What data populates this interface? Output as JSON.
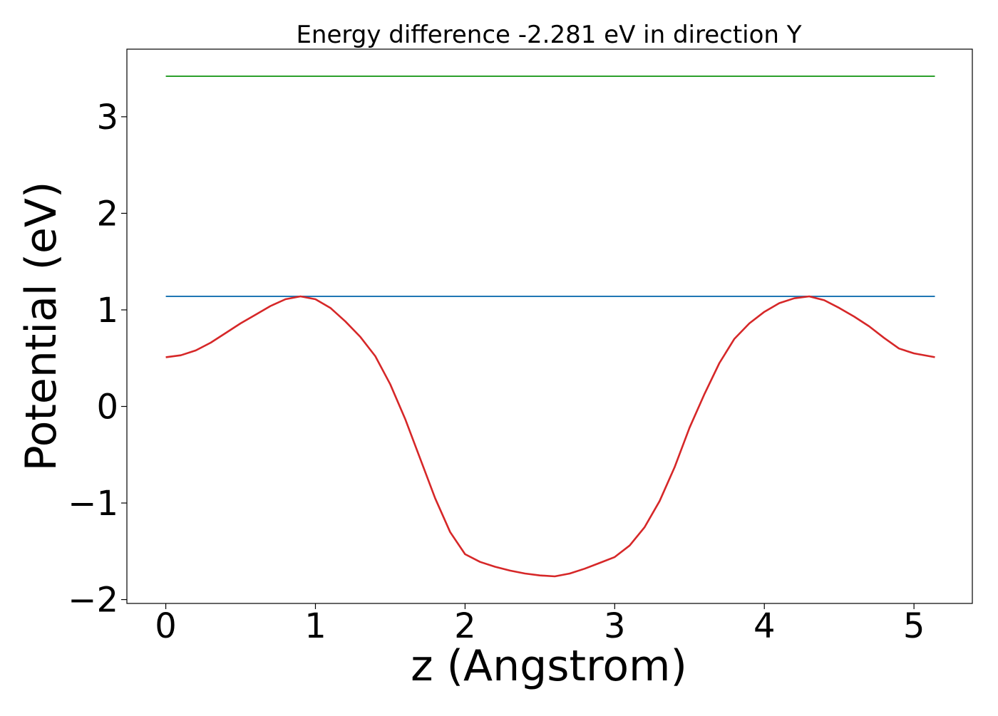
{
  "chart_data": {
    "type": "line",
    "title": "Energy difference -2.281 eV in direction Y",
    "xlabel": "z (Angstrom)",
    "ylabel": "Potential (eV)",
    "xlim": [
      -0.26,
      5.39
    ],
    "ylim": [
      -2.04,
      3.7
    ],
    "x_ticks": [
      0,
      1,
      2,
      3,
      4,
      5
    ],
    "y_ticks": [
      -2,
      -1,
      0,
      1,
      2,
      3
    ],
    "x_tick_labels": [
      "0",
      "1",
      "2",
      "3",
      "4",
      "5"
    ],
    "y_tick_labels": [
      "−2",
      "−1",
      "0",
      "1",
      "2",
      "3"
    ],
    "grid": false,
    "series": [
      {
        "color": "#2ca02c",
        "x": [
          0,
          5.14
        ],
        "y": [
          3.42,
          3.42
        ]
      },
      {
        "color": "#1f77b4",
        "x": [
          0,
          5.14
        ],
        "y": [
          1.14,
          1.14
        ]
      },
      {
        "color": "#d62728",
        "x": [
          0,
          0.1,
          0.2,
          0.3,
          0.4,
          0.5,
          0.6,
          0.7,
          0.8,
          0.9,
          1.0,
          1.1,
          1.2,
          1.3,
          1.4,
          1.5,
          1.6,
          1.7,
          1.8,
          1.9,
          2.0,
          2.1,
          2.2,
          2.3,
          2.4,
          2.5,
          2.6,
          2.7,
          2.8,
          2.9,
          3.0,
          3.1,
          3.2,
          3.3,
          3.4,
          3.5,
          3.6,
          3.7,
          3.8,
          3.9,
          4.0,
          4.1,
          4.2,
          4.3,
          4.4,
          4.5,
          4.6,
          4.7,
          4.8,
          4.9,
          5.0,
          5.14
        ],
        "y": [
          0.51,
          0.53,
          0.58,
          0.66,
          0.76,
          0.86,
          0.95,
          1.04,
          1.11,
          1.14,
          1.11,
          1.02,
          0.88,
          0.72,
          0.52,
          0.23,
          -0.13,
          -0.54,
          -0.95,
          -1.3,
          -1.53,
          -1.61,
          -1.66,
          -1.7,
          -1.73,
          -1.75,
          -1.76,
          -1.73,
          -1.68,
          -1.62,
          -1.56,
          -1.44,
          -1.25,
          -0.98,
          -0.63,
          -0.22,
          0.13,
          0.45,
          0.7,
          0.86,
          0.98,
          1.07,
          1.12,
          1.14,
          1.1,
          1.02,
          0.93,
          0.83,
          0.71,
          0.6,
          0.55,
          0.51
        ]
      }
    ]
  }
}
